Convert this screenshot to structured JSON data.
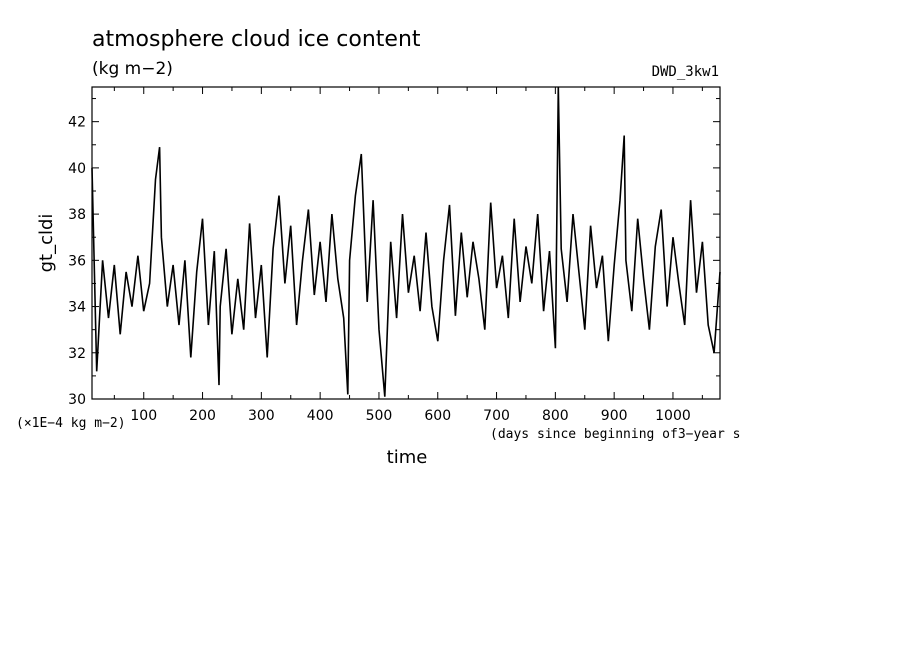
{
  "chart_data": {
    "type": "line",
    "title": "atmosphere cloud ice content",
    "subtitle": "(kg m−2)",
    "tag": "DWD_3kw1",
    "ylabel": "gt_cldi",
    "yunit_note": "(×1E−4 kg m−2)",
    "xlabel": "time",
    "xnote": "(days since beginning of3−year s",
    "xlim": [
      12,
      1080
    ],
    "ylim": [
      30,
      43.5
    ],
    "xticks": [
      100,
      200,
      300,
      400,
      500,
      600,
      700,
      800,
      900,
      1000
    ],
    "yticks": [
      30,
      32,
      34,
      36,
      38,
      40,
      42
    ],
    "grid": false,
    "colors": {
      "line": "#000000",
      "axes": "#000000",
      "background": "#ffffff"
    },
    "series": [
      {
        "x": [
          12,
          20,
          30,
          40,
          50,
          60,
          70,
          80,
          90,
          100,
          110,
          120,
          127,
          130,
          140,
          150,
          160,
          170,
          180,
          190,
          200,
          210,
          220,
          228,
          230,
          240,
          250,
          260,
          270,
          280,
          290,
          300,
          310,
          320,
          330,
          340,
          350,
          360,
          370,
          380,
          390,
          400,
          410,
          420,
          430,
          440,
          447,
          450,
          460,
          470,
          480,
          490,
          500,
          510,
          520,
          530,
          540,
          550,
          560,
          570,
          580,
          590,
          600,
          610,
          620,
          630,
          640,
          650,
          660,
          670,
          680,
          690,
          700,
          710,
          720,
          730,
          740,
          750,
          760,
          770,
          780,
          790,
          800,
          805,
          810,
          820,
          830,
          840,
          850,
          860,
          870,
          880,
          890,
          900,
          910,
          917,
          920,
          930,
          940,
          950,
          960,
          970,
          980,
          990,
          1000,
          1010,
          1020,
          1030,
          1040,
          1050,
          1060,
          1070,
          1080
        ],
        "y": [
          40.0,
          31.2,
          36.0,
          33.5,
          35.8,
          32.8,
          35.5,
          34.0,
          36.2,
          33.8,
          35.0,
          39.5,
          40.9,
          37.0,
          34.0,
          35.8,
          33.2,
          36.0,
          31.8,
          35.5,
          37.8,
          33.2,
          36.4,
          30.6,
          34.0,
          36.5,
          32.8,
          35.2,
          33.0,
          37.6,
          33.5,
          35.8,
          31.8,
          36.5,
          38.8,
          35.0,
          37.5,
          33.2,
          36.0,
          38.2,
          34.5,
          36.8,
          34.2,
          38.0,
          35.2,
          33.5,
          30.2,
          36.0,
          38.8,
          40.6,
          34.2,
          38.6,
          33.0,
          30.1,
          36.8,
          33.5,
          38.0,
          34.6,
          36.2,
          33.8,
          37.2,
          34.0,
          32.5,
          36.0,
          38.4,
          33.6,
          37.2,
          34.4,
          36.8,
          35.2,
          33.0,
          38.5,
          34.8,
          36.2,
          33.5,
          37.8,
          34.2,
          36.6,
          35.0,
          38.0,
          33.8,
          36.4,
          32.2,
          43.5,
          36.5,
          34.2,
          38.0,
          35.5,
          33.0,
          37.5,
          34.8,
          36.2,
          32.5,
          35.8,
          38.6,
          41.4,
          36.0,
          33.8,
          37.8,
          35.2,
          33.0,
          36.6,
          38.2,
          34.0,
          37.0,
          35.0,
          33.2,
          38.6,
          34.6,
          36.8,
          33.2,
          32.0,
          35.5
        ]
      }
    ]
  }
}
